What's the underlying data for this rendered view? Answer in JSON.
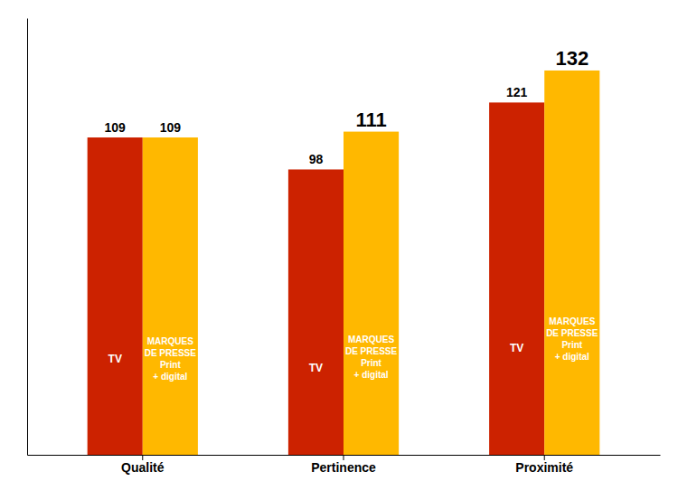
{
  "chart_data": {
    "type": "bar",
    "categories": [
      "Qualité",
      "Pertinence",
      "Proximité"
    ],
    "series": [
      {
        "name": "TV",
        "color": "#CC2200",
        "values": [
          109,
          98,
          121
        ]
      },
      {
        "name": "MARQUES\nDE PRESSE\nPrint\n+ digital",
        "color": "#FFB800",
        "values": [
          109,
          111,
          132
        ]
      }
    ],
    "ylim": [
      0,
      150
    ],
    "data_labels": true,
    "tick_labels": "x",
    "grid": false
  }
}
